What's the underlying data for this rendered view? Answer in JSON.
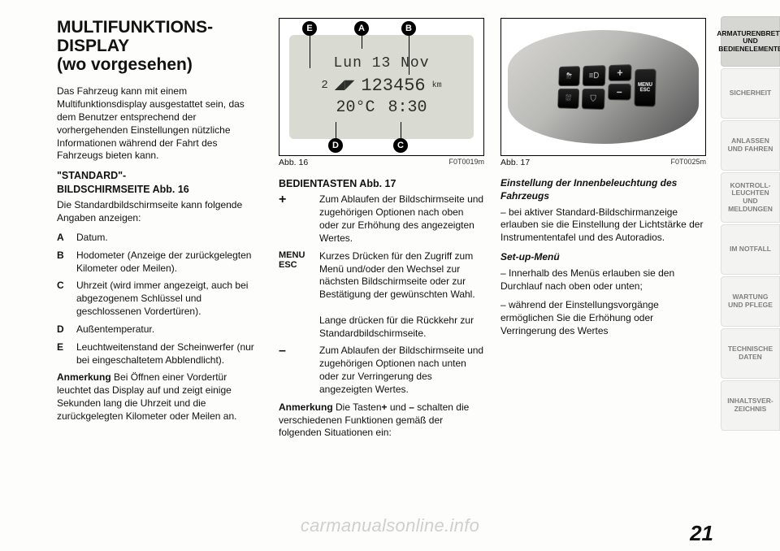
{
  "title_line1": "MULTIFUNKTIONS-",
  "title_line2": "DISPLAY",
  "title_line3": "(wo vorgesehen)",
  "intro": "Das Fahrzeug kann mit einem Multifunktionsdisplay ausgestattet sein, das dem Benutzer entsprechend der vorhergehenden Einstellungen nützliche Informationen während der Fahrt des Fahrzeugs bieten kann.",
  "std_head1": "\"STANDARD\"-",
  "std_head2": "BILDSCHIRMSEITE Abb. 16",
  "std_intro": "Die Standardbildschirmseite kann folgende Angaben anzeigen:",
  "defs": {
    "A": "Datum.",
    "B": "Hodometer (Anzeige der zurückgelegten Kilometer oder Meilen).",
    "C": "Uhrzeit (wird immer angezeigt, auch bei abgezogenem Schlüssel und geschlossenen Vordertüren).",
    "D": "Außentemperatur.",
    "E": "Leuchtweitenstand der Scheinwerfer (nur bei eingeschaltetem Abblendlicht)."
  },
  "anm_label": "Anmerkung ",
  "anm1": "Bei Öffnen einer Vordertür leuchtet das Display auf und zeigt einige Sekunden lang die Uhrzeit und die zurückgelegten Kilometer oder Meilen an.",
  "fig16": {
    "cap": "Abb. 16",
    "code": "F0T0019m",
    "lcd": {
      "date": "Lun 13 Nov",
      "lev": "2",
      "odo": "123456",
      "km": "km",
      "temp": "20°C",
      "time": "8:30"
    },
    "labels": {
      "E": "E",
      "A": "A",
      "B": "B",
      "D": "D",
      "C": "C"
    }
  },
  "bed_head": "BEDIENTASTEN Abb. 17",
  "btn_plus": "Zum Ablaufen der Bildschirmseite und zugehörigen Optionen nach oben oder zur Erhöhung des angezeigten Wertes.",
  "menu_key1": "MENU",
  "menu_key2": "ESC",
  "btn_menu1": "Kurzes Drücken für den Zugriff zum Menü und/oder den Wechsel zur nächsten Bildschirmseite oder zur Bestätigung der gewünschten Wahl.",
  "btn_menu2": "Lange drücken für die Rückkehr zur Standardbildschirmseite.",
  "btn_minus": "Zum Ablaufen der Bildschirmseite und zugehörigen Optionen nach unten oder zur Verringerung des angezeigten Wertes.",
  "anm2a": "Die Tasten",
  "anm2b": "+",
  "anm2c": " und ",
  "anm2d": "–",
  "anm2e": " schalten die verschiedenen Funktionen gemäß der folgenden Situationen ein:",
  "fig17": {
    "cap": "Abb. 17",
    "code": "F0T0025m",
    "btns": [
      "⛈",
      "≡D",
      "⛆",
      "⛉",
      "+",
      "–"
    ],
    "menu": "MENU\nESC"
  },
  "innen_head": "Einstellung der Innenbeleuchtung des Fahrzeugs",
  "innen_body": "– bei aktiver Standard-Bildschirmanzeige erlauben sie die Einstellung der Lichtstärke der Instrumententafel und des Autoradios.",
  "setup_head": "Set-up-Menü",
  "setup_b1": "– Innerhalb des Menüs erlauben sie den Durchlauf nach oben oder unten;",
  "setup_b2": "– während der Einstellungsvorgänge ermöglichen Sie die Erhöhung oder Verringerung des Wertes",
  "tabs": [
    "ARMATURENBRETT\nUND\nBEDIENELEMENTE",
    "SICHERHEIT",
    "ANLASSEN\nUND FAHREN",
    "KONTROLL-\nLEUCHTEN UND\nMELDUNGEN",
    "IM NOTFALL",
    "WARTUNG\nUND PFLEGE",
    "TECHNISCHE\nDATEN",
    "INHALTSVER-\nZEICHNIS"
  ],
  "pagenum": "21",
  "watermark": "carmanualsonline.info"
}
